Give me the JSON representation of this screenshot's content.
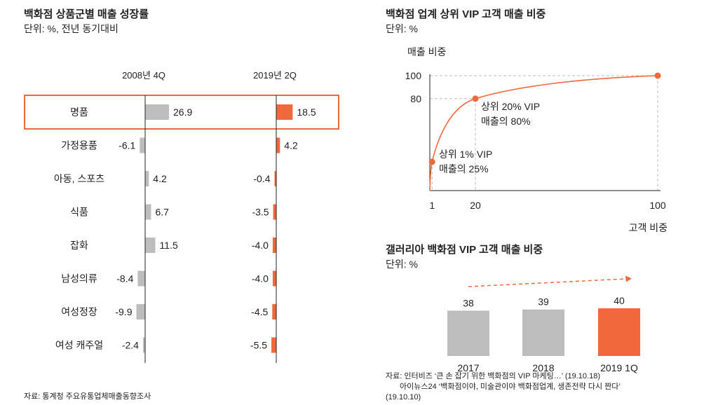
{
  "colors": {
    "orange": "#f0683c",
    "gray": "#bdbdbd",
    "line": "#222222",
    "dash": "#bbbbbb"
  },
  "left_chart": {
    "title": "백화점 상품군별 매출 성장률",
    "unit": "단위: %, 전년 동기대비",
    "source": "자료: 통계청 주요유통업체매출동향조사",
    "highlight_category": "명품"
  },
  "top_right_chart": {
    "title": "백화점 업계 상위 VIP 고객 매출 비중",
    "unit": "단위: %",
    "annotations": [
      {
        "line1": "상위 20% VIP",
        "line2": "매출의 80%"
      },
      {
        "line1": "상위 1% VIP",
        "line2": "매출의 25%"
      }
    ]
  },
  "bottom_right_chart": {
    "title": "갤러리아 백화점 VIP 고객 매출 비중",
    "unit": "단위: %",
    "source_line1": "자료: 인터비즈 ‘큰 손 잡기 위한 백화점의 VIP 마케팅…’ (19.10.18)",
    "source_line2": "아이뉴스24 ‘백화점이야, 미술관이야 백화점업계, 생존전략 다시 짠다’",
    "source_line3": "(19.10.10)"
  },
  "chart_data": [
    {
      "type": "bar",
      "orientation": "horizontal",
      "title": "백화점 상품군별 매출 성장률",
      "categories": [
        "명품",
        "가정용품",
        "아동, 스포츠",
        "식품",
        "잡화",
        "남성의류",
        "여성정장",
        "여성 캐주얼"
      ],
      "series": [
        {
          "name": "2008년 4Q",
          "values": [
            26.9,
            -6.1,
            4.2,
            6.7,
            11.5,
            -8.4,
            -9.9,
            -2.4
          ],
          "labels": [
            "26.9",
            "-6.1",
            "4.2",
            "6.7",
            "11.5",
            "-8.4",
            "-9.9",
            "-2.4"
          ]
        },
        {
          "name": "2019년 2Q",
          "values": [
            18.5,
            4.2,
            -0.4,
            -3.5,
            -4.0,
            -4.0,
            -4.5,
            -5.5
          ],
          "labels": [
            "18.5",
            "4.2",
            "-0.4",
            "-3.5",
            "-4.0",
            "-4.0",
            "-4.5",
            "-5.5"
          ]
        }
      ]
    },
    {
      "type": "line",
      "title": "백화점 업계 상위 VIP 고객 매출 비중",
      "xlabel": "고객 비중",
      "ylabel": "매출 비중",
      "x_ticks": [
        "1",
        "20",
        "100"
      ],
      "y_ticks": [
        "80",
        "100"
      ],
      "xlim": [
        0,
        100
      ],
      "ylim": [
        0,
        100
      ],
      "points": [
        {
          "x": 1,
          "y": 25
        },
        {
          "x": 20,
          "y": 80
        },
        {
          "x": 100,
          "y": 100
        }
      ]
    },
    {
      "type": "bar",
      "title": "갤러리아 백화점 VIP 고객 매출 비중",
      "categories": [
        "2017",
        "2018",
        "2019 1Q"
      ],
      "values": [
        38,
        39,
        40
      ],
      "labels": [
        "38",
        "39",
        "40"
      ],
      "highlight_index": 2
    }
  ]
}
